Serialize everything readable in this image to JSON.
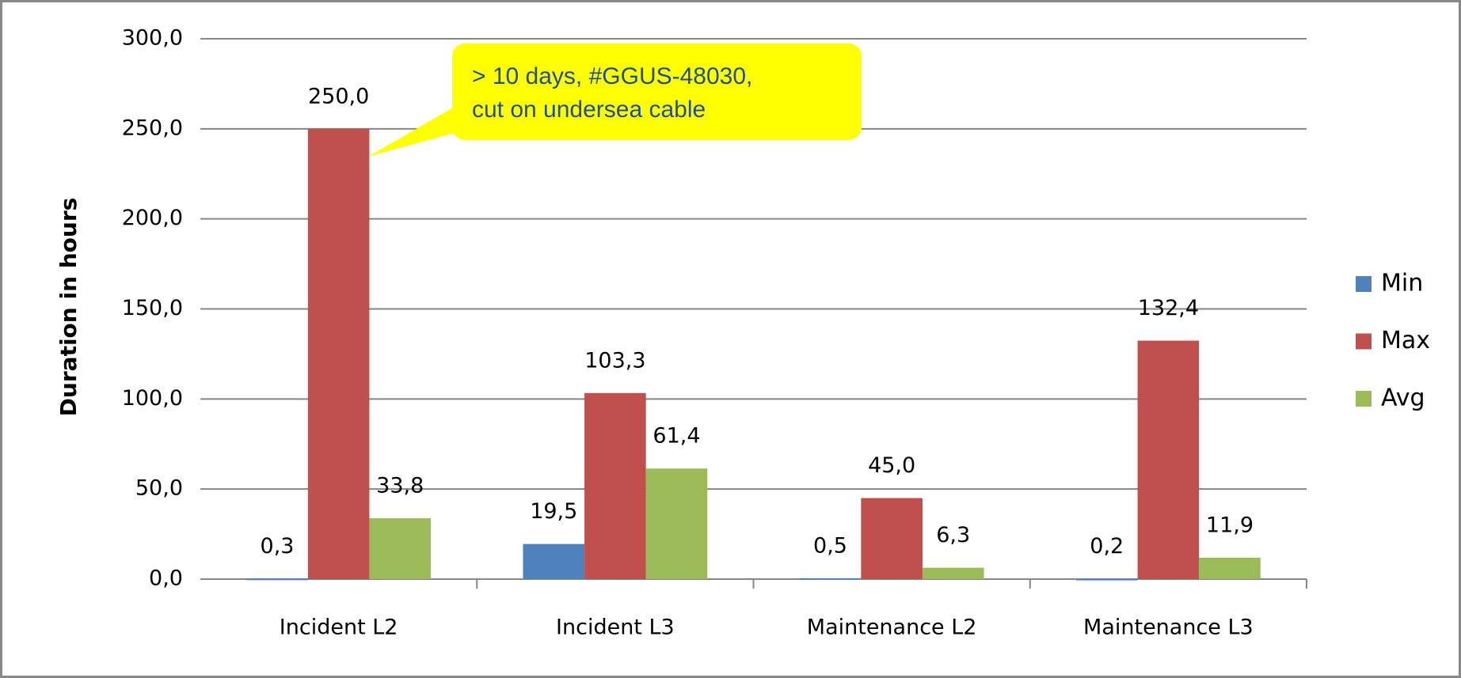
{
  "chart_data": {
    "type": "bar",
    "y_label": "Duration in hours",
    "categories": [
      "Incident L2",
      "Incident L3",
      "Maintenance L2",
      "Maintenance L3"
    ],
    "series": [
      {
        "name": "Min",
        "color": "#4f81bd",
        "values": [
          0.3,
          19.5,
          0.5,
          0.2
        ],
        "value_labels": [
          "0,3",
          "19,5",
          "0,5",
          "0,2"
        ]
      },
      {
        "name": "Max",
        "color": "#c0504d",
        "values": [
          250,
          103.3,
          45,
          132.4
        ],
        "value_labels": [
          "250,0",
          "103,3",
          "45,0",
          "132,4"
        ]
      },
      {
        "name": "Avg",
        "color": "#9bbb59",
        "values": [
          33.8,
          61.4,
          6.3,
          11.9
        ],
        "value_labels": [
          "33,8",
          "61,4",
          "6,3",
          "11,9"
        ]
      }
    ],
    "ylim": [
      0,
      300
    ],
    "yticks": [
      {
        "value": 0,
        "label": "0,0"
      },
      {
        "value": 50,
        "label": "50,0"
      },
      {
        "value": 100,
        "label": "100,0"
      },
      {
        "value": 150,
        "label": "150,0"
      },
      {
        "value": 200,
        "label": "200,0"
      },
      {
        "value": 250,
        "label": "250,0"
      },
      {
        "value": 300,
        "label": "300,0"
      }
    ],
    "grid": true,
    "legend": "right",
    "annotations": [
      "> 10 days, #GGUS-48030,",
      "cut on undersea cable"
    ]
  }
}
